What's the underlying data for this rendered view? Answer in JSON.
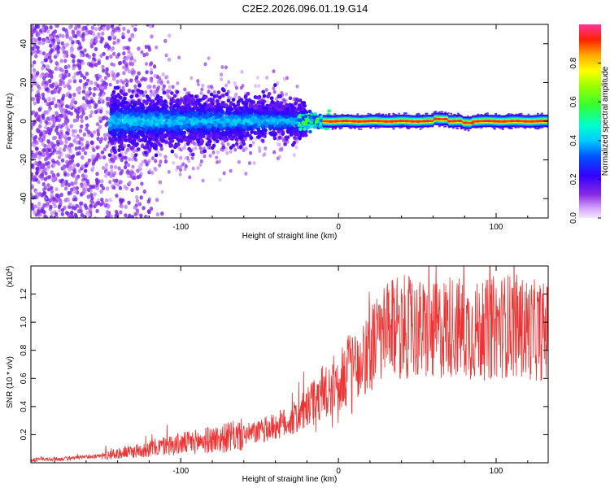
{
  "title": "C2E2.2026.096.01.19.G14",
  "chart_data": [
    {
      "type": "heatmap",
      "xlabel": "Height of straight line (km)",
      "ylabel": "Frequency (Hz)",
      "xlim": [
        -195,
        133
      ],
      "ylim": [
        -50,
        50
      ],
      "xticks": [
        -100,
        0,
        100
      ],
      "yticks": [
        -40,
        -20,
        0,
        20,
        40
      ],
      "description_points": [
        {
          "x_range": [
            -195,
            -140
          ],
          "freq_spread": 50,
          "amplitude": 0.15
        },
        {
          "x_range": [
            -140,
            -30
          ],
          "freq_spread": 10,
          "amplitude": 0.35
        },
        {
          "x_range": [
            -30,
            -10
          ],
          "freq_spread": 3,
          "amplitude": 0.45
        },
        {
          "x_range": [
            -10,
            133
          ],
          "freq_spread": 2,
          "amplitude": 1.0
        }
      ],
      "colorbar": {
        "label": "Normalized spectral amplitude",
        "range": [
          0.0,
          1.0
        ],
        "ticks": [
          0.0,
          0.2,
          0.4,
          0.6,
          0.8
        ]
      }
    },
    {
      "type": "line",
      "xlabel": "Height of straight line (km)",
      "ylabel": "SNR (10 * v/v)",
      "multiplier_label": "(x10",
      "multiplier_exp": "4",
      "multiplier_close": ")",
      "xlim": [
        -195,
        133
      ],
      "ylim": [
        0,
        1.4
      ],
      "xticks": [
        -100,
        0,
        100
      ],
      "yticks": [
        0.2,
        0.4,
        0.6,
        0.8,
        1.0,
        1.2
      ],
      "series": [
        {
          "name": "SNR",
          "color": "#ee3333",
          "x": [
            -195,
            -170,
            -150,
            -130,
            -110,
            -90,
            -70,
            -50,
            -30,
            -20,
            -10,
            0,
            10,
            20,
            30,
            40,
            50,
            60,
            70,
            80,
            90,
            100,
            110,
            120,
            133
          ],
          "y": [
            0.02,
            0.03,
            0.05,
            0.08,
            0.12,
            0.15,
            0.18,
            0.22,
            0.3,
            0.38,
            0.5,
            0.58,
            0.7,
            0.82,
            0.92,
            0.97,
            0.95,
            0.92,
            0.98,
            0.95,
            0.93,
            0.97,
            0.98,
            0.95,
            0.93
          ]
        }
      ]
    }
  ]
}
